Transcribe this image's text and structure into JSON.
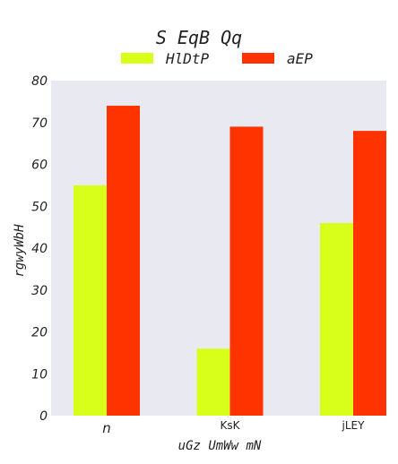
{
  "chart_data": {
    "type": "bar",
    "title": "S EqB Qq",
    "xlabel": "uGz  UmWw mN",
    "ylabel": "rgwyWbH",
    "categories": [
      "n",
      "KsK",
      "jLEY"
    ],
    "series": [
      {
        "name": "HlDtP",
        "color": "#d8ff1a",
        "values": [
          55,
          16,
          46
        ]
      },
      {
        "name": "aEP",
        "color": "#ff3300",
        "values": [
          74,
          69,
          68
        ]
      }
    ],
    "ylim": [
      0,
      80
    ],
    "yticks": [
      0,
      10,
      20,
      30,
      40,
      50,
      60,
      70,
      80
    ],
    "grid": false,
    "legend_position": "top-center",
    "plot_background": "#e9e9f2"
  }
}
